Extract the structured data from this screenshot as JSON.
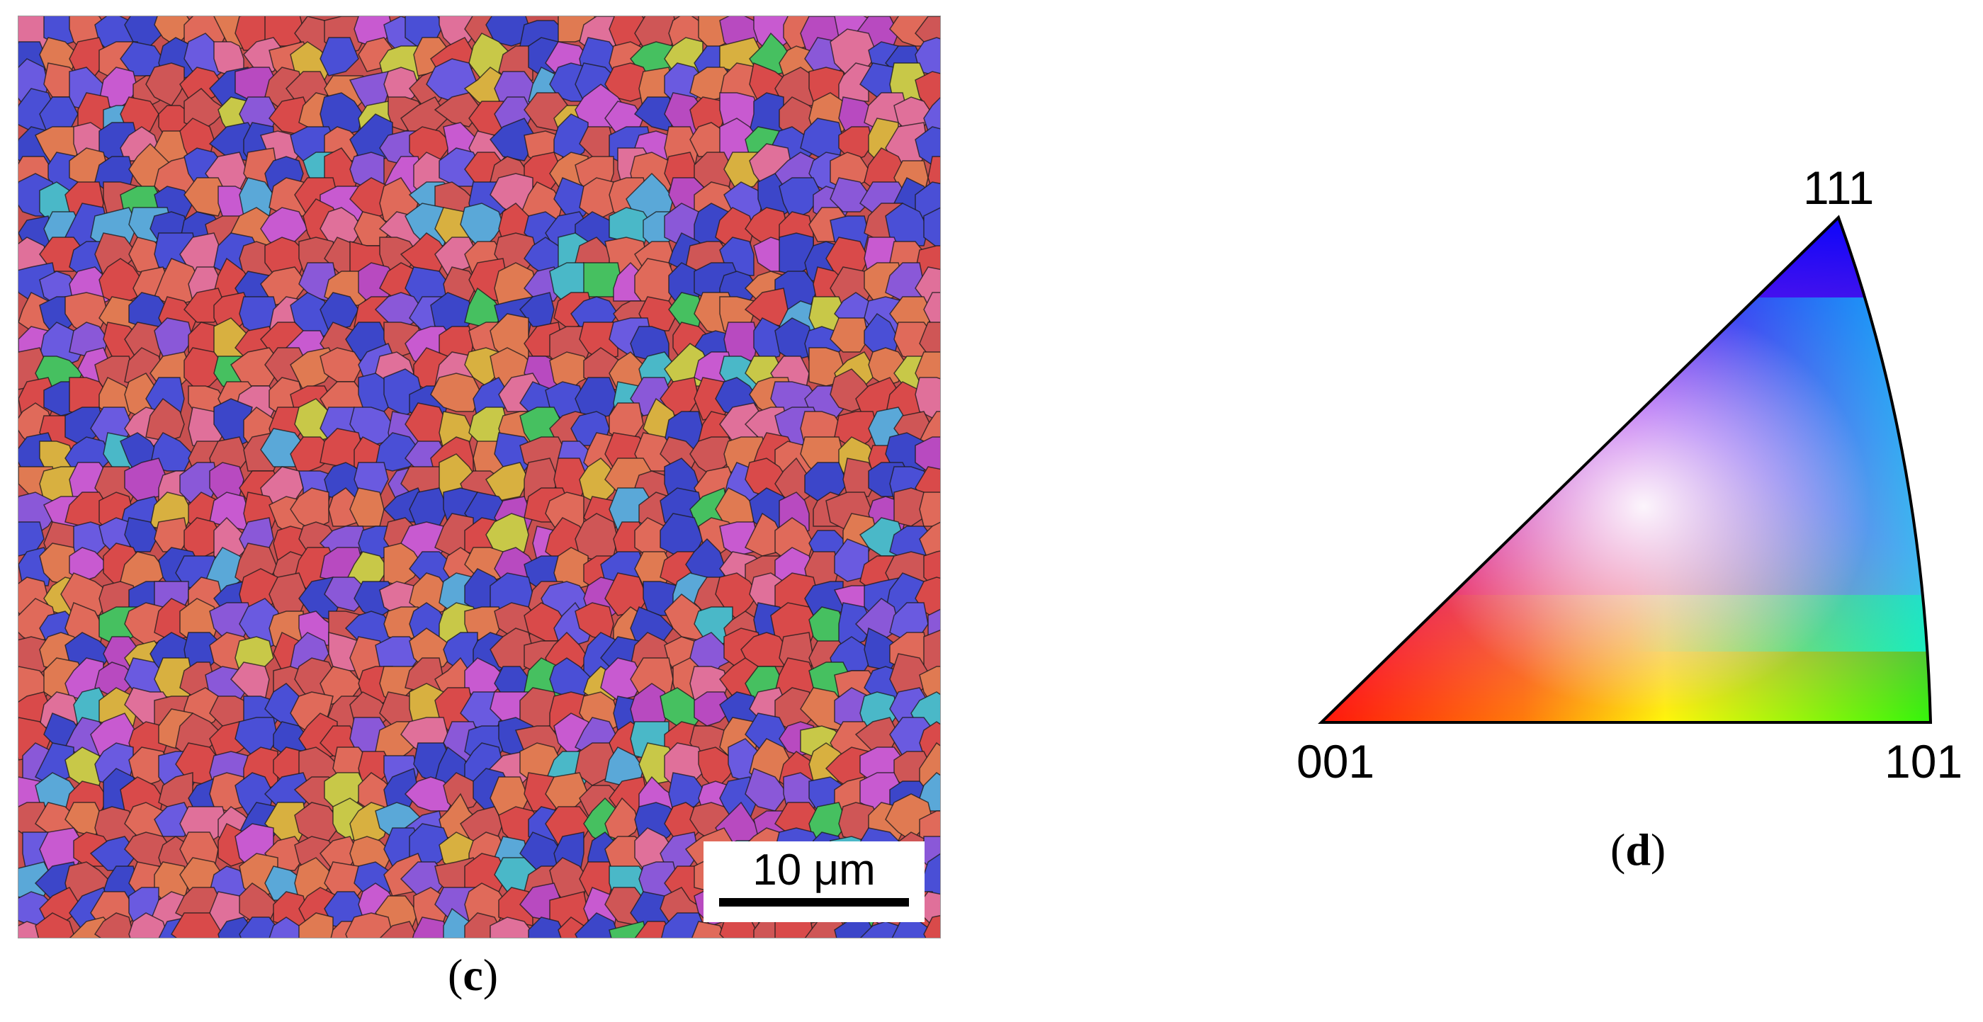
{
  "figure": {
    "panel_c": {
      "label_open": "(",
      "label_letter": "c",
      "label_close": ")",
      "scale_bar_text": "10 μm",
      "grain_colors": [
        "#d94a4a",
        "#cf5656",
        "#e06a5a",
        "#3c46c9",
        "#4a4fd6",
        "#6a5ae0",
        "#8a58d8",
        "#c85ad0",
        "#e0709a",
        "#e07a52",
        "#4ab8c8",
        "#46c060",
        "#c8c848",
        "#d8b040",
        "#5aa8d8",
        "#b84ac0"
      ],
      "boundary_color": "#1a1a1a"
    },
    "panel_d": {
      "label_open": "(",
      "label_letter": "d",
      "label_close": ")",
      "pole_001": "001",
      "pole_101": "101",
      "pole_111": "111",
      "color_001": "#ff0000",
      "color_101": "#00ff00",
      "color_111": "#0000ff"
    }
  }
}
